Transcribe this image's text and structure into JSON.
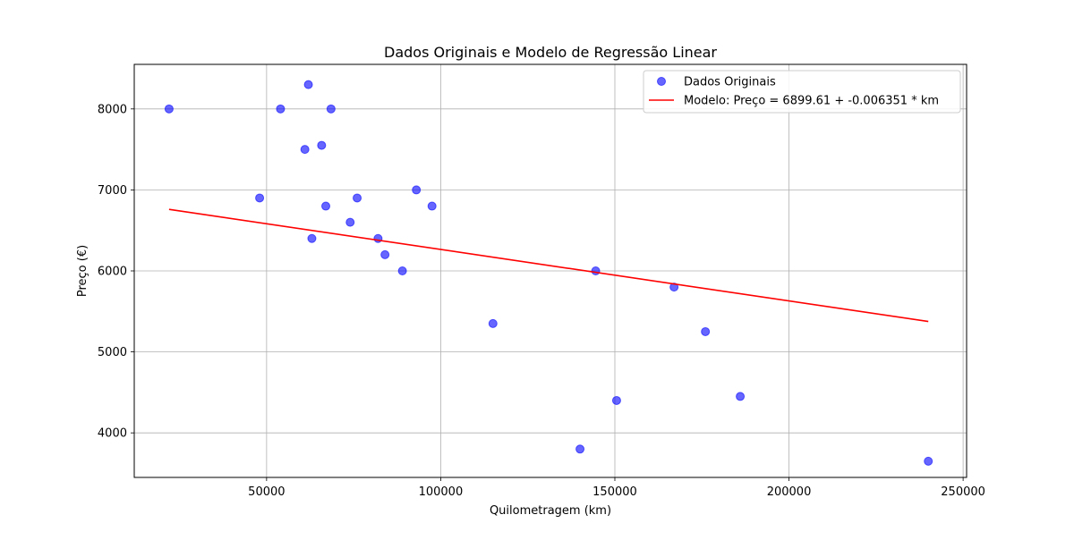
{
  "chart_data": {
    "type": "scatter",
    "title": "Dados Originais e Modelo de Regressão Linear",
    "xlabel": "Quilometragem (km)",
    "ylabel": "Preço (€)",
    "xlim": [
      12000,
      251000
    ],
    "ylim": [
      3450,
      8550
    ],
    "xticks": [
      50000,
      100000,
      150000,
      200000,
      250000
    ],
    "yticks": [
      4000,
      5000,
      6000,
      7000,
      8000
    ],
    "grid": true,
    "legend_position": "top-right",
    "colors": {
      "points": "#0000ff",
      "line": "#ff0000"
    },
    "series": [
      {
        "name": "Dados Originais",
        "kind": "scatter",
        "points": [
          [
            22000,
            8000
          ],
          [
            48000,
            6900
          ],
          [
            54000,
            8000
          ],
          [
            61000,
            7500
          ],
          [
            62000,
            8300
          ],
          [
            63000,
            6400
          ],
          [
            65800,
            7550
          ],
          [
            67000,
            6800
          ],
          [
            68500,
            8000
          ],
          [
            74000,
            6600
          ],
          [
            76000,
            6900
          ],
          [
            82000,
            6400
          ],
          [
            84000,
            6200
          ],
          [
            89000,
            6000
          ],
          [
            93000,
            7000
          ],
          [
            97500,
            6800
          ],
          [
            115000,
            5350
          ],
          [
            140000,
            3800
          ],
          [
            144500,
            6000
          ],
          [
            150500,
            4400
          ],
          [
            167000,
            5800
          ],
          [
            176000,
            5250
          ],
          [
            186000,
            4450
          ],
          [
            240000,
            3650
          ]
        ]
      },
      {
        "name": "Modelo: Preço = 6899.61 + -0.006351 * km",
        "kind": "line",
        "points": [
          [
            22000,
            6759.89
          ],
          [
            240000,
            5375.37
          ]
        ]
      }
    ]
  }
}
